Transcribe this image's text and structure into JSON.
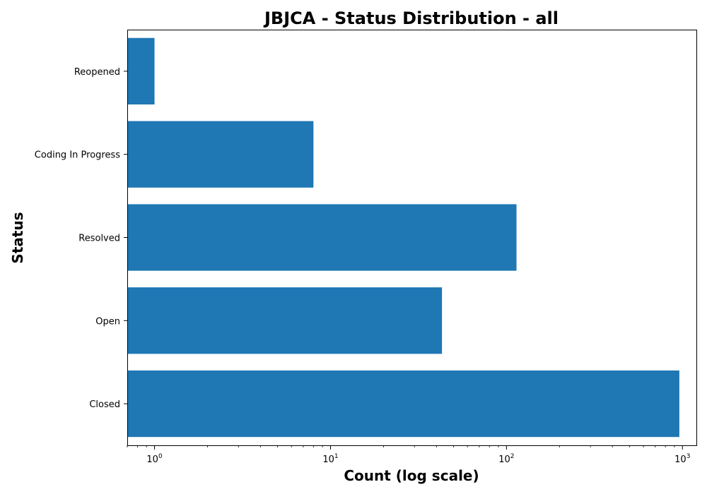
{
  "chart_data": {
    "type": "bar",
    "orientation": "horizontal",
    "title": "JBJCA - Status Distribution - all",
    "xlabel": "Count (log scale)",
    "ylabel": "Status",
    "x_scale": "log",
    "xlim": [
      0.7,
      1200
    ],
    "x_ticks": [
      {
        "base": "10",
        "exponent": "0",
        "value": 1
      },
      {
        "base": "10",
        "exponent": "1",
        "value": 10
      },
      {
        "base": "10",
        "exponent": "2",
        "value": 100
      },
      {
        "base": "10",
        "exponent": "3",
        "value": 1000
      }
    ],
    "categories": [
      "Closed",
      "Open",
      "Resolved",
      "Coding In Progress",
      "Reopened"
    ],
    "values": [
      960,
      43,
      114,
      8,
      1
    ],
    "bar_color": "#1f77b4",
    "grid": false,
    "legend": "none"
  }
}
